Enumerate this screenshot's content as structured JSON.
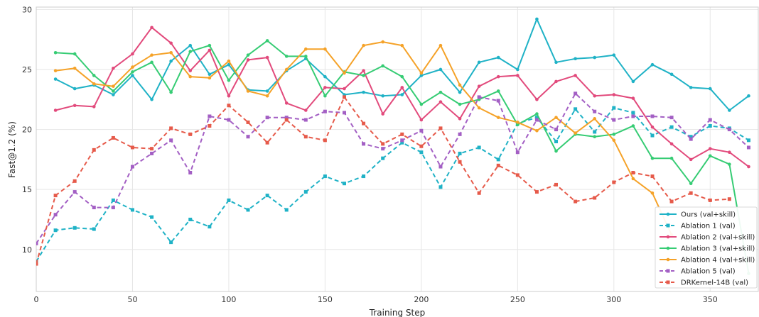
{
  "chart_data": {
    "type": "line",
    "xlabel": "Training Step",
    "ylabel": "Fast@1.2 (%)",
    "xlim": [
      0,
      375
    ],
    "ylim": [
      6.5,
      30.2
    ],
    "xticks": [
      0,
      50,
      100,
      150,
      200,
      250,
      300,
      350
    ],
    "yticks": [
      10,
      15,
      20,
      25,
      30
    ],
    "grid": true,
    "legend_position": "lower-right",
    "series": [
      {
        "name": "Ours (val+skill)",
        "color": "#1fb2c6",
        "dash": "solid",
        "marker": "circle",
        "x": [
          10,
          20,
          30,
          40,
          50,
          60,
          70,
          80,
          90,
          100,
          110,
          120,
          130,
          140,
          150,
          160,
          170,
          180,
          190,
          200,
          210,
          220,
          230,
          240,
          250,
          260,
          270,
          280,
          290,
          300,
          310,
          320,
          330,
          340,
          350,
          360,
          370
        ],
        "y": [
          24.2,
          23.4,
          23.7,
          22.9,
          24.5,
          22.5,
          25.7,
          27.0,
          24.6,
          25.4,
          23.3,
          23.2,
          24.9,
          25.9,
          24.4,
          22.9,
          23.1,
          22.8,
          22.9,
          24.5,
          25.0,
          23.1,
          25.6,
          26.0,
          25.0,
          29.2,
          25.6,
          25.9,
          26.0,
          26.2,
          24.0,
          25.4,
          24.6,
          23.5,
          23.4,
          21.6,
          22.8
        ]
      },
      {
        "name": "Ablation 1 (val)",
        "color": "#1fb2c6",
        "dash": "dashed",
        "marker": "square",
        "x": [
          0,
          10,
          20,
          30,
          40,
          50,
          60,
          70,
          80,
          90,
          100,
          110,
          120,
          130,
          140,
          150,
          160,
          170,
          180,
          190,
          200,
          210,
          220,
          230,
          240,
          250,
          260,
          270,
          280,
          290,
          300,
          310,
          320,
          330,
          340,
          350,
          360,
          370
        ],
        "y": [
          9.0,
          11.6,
          11.8,
          11.7,
          14.1,
          13.3,
          12.7,
          10.6,
          12.5,
          11.9,
          14.1,
          13.3,
          14.5,
          13.3,
          14.8,
          16.1,
          15.5,
          16.1,
          17.6,
          18.9,
          18.1,
          15.2,
          18.0,
          18.5,
          17.5,
          20.5,
          21.0,
          19.0,
          21.7,
          19.8,
          21.8,
          21.4,
          19.5,
          20.2,
          19.4,
          20.3,
          20.1,
          19.1
        ]
      },
      {
        "name": "Ablation 2 (val+skill)",
        "color": "#e24a7c",
        "dash": "solid",
        "marker": "circle",
        "x": [
          10,
          20,
          30,
          40,
          50,
          60,
          70,
          80,
          90,
          100,
          110,
          120,
          130,
          140,
          150,
          160,
          170,
          180,
          190,
          200,
          210,
          220,
          230,
          240,
          250,
          260,
          270,
          280,
          290,
          300,
          310,
          320,
          330,
          340,
          350,
          360,
          370
        ],
        "y": [
          21.6,
          22.0,
          21.9,
          25.1,
          26.3,
          28.5,
          27.2,
          24.9,
          26.6,
          22.8,
          25.8,
          26.0,
          22.2,
          21.6,
          23.5,
          23.4,
          24.9,
          21.3,
          23.5,
          20.8,
          22.3,
          20.9,
          23.6,
          24.4,
          24.5,
          22.5,
          24.0,
          24.5,
          22.8,
          22.9,
          22.6,
          20.2,
          18.8,
          17.5,
          18.4,
          18.1,
          16.9
        ]
      },
      {
        "name": "Ablation 3 (val+skill)",
        "color": "#36cc74",
        "dash": "solid",
        "marker": "circle",
        "x": [
          10,
          20,
          30,
          40,
          50,
          60,
          70,
          80,
          90,
          100,
          110,
          120,
          130,
          140,
          150,
          160,
          170,
          180,
          190,
          200,
          210,
          220,
          230,
          240,
          250,
          260,
          270,
          280,
          290,
          300,
          310,
          320,
          330,
          340,
          350,
          360,
          370
        ],
        "y": [
          26.4,
          26.3,
          24.5,
          23.2,
          24.8,
          25.6,
          23.1,
          26.5,
          27.0,
          24.1,
          26.2,
          27.4,
          26.1,
          26.1,
          22.8,
          24.8,
          24.5,
          25.3,
          24.4,
          22.1,
          23.1,
          22.1,
          22.5,
          23.2,
          20.4,
          21.3,
          18.2,
          19.6,
          19.4,
          19.6,
          20.3,
          17.6,
          17.6,
          15.5,
          17.8,
          17.1,
          8.0
        ]
      },
      {
        "name": "Ablation 4 (val+skill)",
        "color": "#f5a228",
        "dash": "solid",
        "marker": "circle",
        "x": [
          10,
          20,
          30,
          40,
          50,
          60,
          70,
          80,
          90,
          100,
          110,
          120,
          130,
          140,
          150,
          160,
          170,
          180,
          190,
          200,
          210,
          220,
          230,
          240,
          250,
          260,
          270,
          280,
          290,
          300,
          310,
          320,
          330
        ],
        "y": [
          24.9,
          25.1,
          23.8,
          23.6,
          25.2,
          26.2,
          26.4,
          24.4,
          24.3,
          25.7,
          23.2,
          22.8,
          25.0,
          26.7,
          26.7,
          24.7,
          27.0,
          27.3,
          27.0,
          24.7,
          27.0,
          23.7,
          21.8,
          21.0,
          20.6,
          19.9,
          21.0,
          19.7,
          20.9,
          19.1,
          15.9,
          14.7,
          11.2
        ]
      },
      {
        "name": "Ablation 5 (val)",
        "color": "#a35fc4",
        "dash": "dashed",
        "marker": "square",
        "x": [
          0,
          10,
          20,
          30,
          40,
          50,
          60,
          70,
          80,
          90,
          100,
          110,
          120,
          130,
          140,
          150,
          160,
          170,
          180,
          190,
          200,
          210,
          220,
          230,
          240,
          250,
          260,
          270,
          280,
          290,
          300,
          310,
          320,
          330,
          340,
          350,
          360,
          370
        ],
        "y": [
          10.5,
          12.9,
          14.8,
          13.5,
          13.5,
          16.9,
          18.0,
          19.1,
          16.4,
          21.1,
          20.8,
          19.4,
          21.0,
          21.0,
          20.8,
          21.5,
          21.4,
          18.8,
          18.4,
          19.1,
          19.9,
          16.9,
          19.6,
          22.7,
          22.4,
          18.1,
          20.8,
          20.0,
          23.0,
          21.5,
          20.8,
          21.1,
          21.1,
          21.0,
          19.2,
          20.8,
          20.0,
          18.5
        ]
      },
      {
        "name": "DRKernel-14B (val)",
        "color": "#e65a4a",
        "dash": "dashed",
        "marker": "square",
        "x": [
          0,
          10,
          20,
          30,
          40,
          50,
          60,
          70,
          80,
          90,
          100,
          110,
          120,
          130,
          140,
          150,
          160,
          170,
          180,
          190,
          200,
          210,
          220,
          230,
          240,
          250,
          260,
          270,
          280,
          290,
          300,
          310,
          320,
          330,
          340,
          350,
          360
        ],
        "y": [
          8.8,
          14.5,
          15.7,
          18.3,
          19.3,
          18.5,
          18.4,
          20.1,
          19.6,
          20.3,
          22.0,
          20.6,
          18.9,
          20.8,
          19.4,
          19.1,
          22.7,
          20.5,
          18.8,
          19.6,
          18.6,
          20.1,
          17.3,
          14.7,
          17.0,
          16.2,
          14.8,
          15.4,
          14.0,
          14.3,
          15.6,
          16.4,
          16.1,
          14.0,
          14.7,
          14.1,
          14.2
        ]
      }
    ]
  }
}
